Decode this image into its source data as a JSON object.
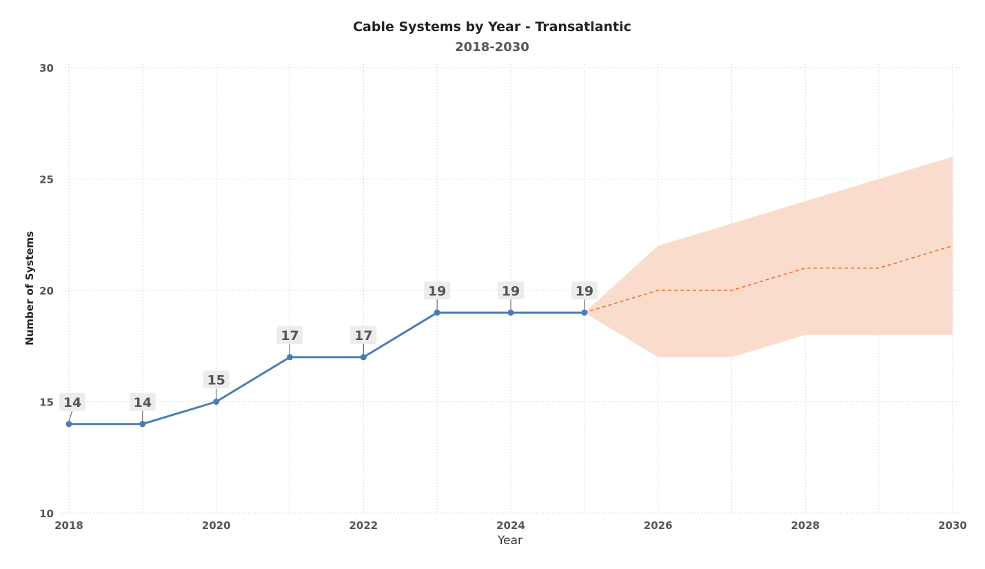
{
  "chart_data": {
    "type": "line",
    "title": "Cable Systems by Year - Transatlantic",
    "subtitle": "2018-2030",
    "xlabel": "Year",
    "ylabel": "Number of Systems",
    "xlim": [
      2018,
      2030
    ],
    "ylim": [
      10,
      30
    ],
    "x_ticks": [
      2018,
      2020,
      2022,
      2024,
      2026,
      2028,
      2030
    ],
    "y_ticks": [
      10,
      15,
      20,
      25,
      30
    ],
    "grid": true,
    "series": [
      {
        "x": [
          2018,
          2019,
          2020,
          2021,
          2022,
          2023,
          2024,
          2025
        ],
        "values": [
          14,
          14,
          15,
          17,
          17,
          19,
          19,
          19
        ],
        "labels": [
          "14",
          "14",
          "15",
          "17",
          "17",
          "19",
          "19",
          "19"
        ],
        "color": "#4a7db5"
      }
    ],
    "forecast": {
      "x": [
        2025,
        2026,
        2027,
        2028,
        2029,
        2030
      ],
      "values": [
        19,
        20,
        20,
        21,
        21,
        22
      ],
      "lower": [
        19,
        17,
        17,
        18,
        18,
        18
      ],
      "upper": [
        19,
        22,
        23,
        24,
        25,
        26
      ],
      "line_color": "#e8692e",
      "band_color": "#f9dccb"
    }
  }
}
